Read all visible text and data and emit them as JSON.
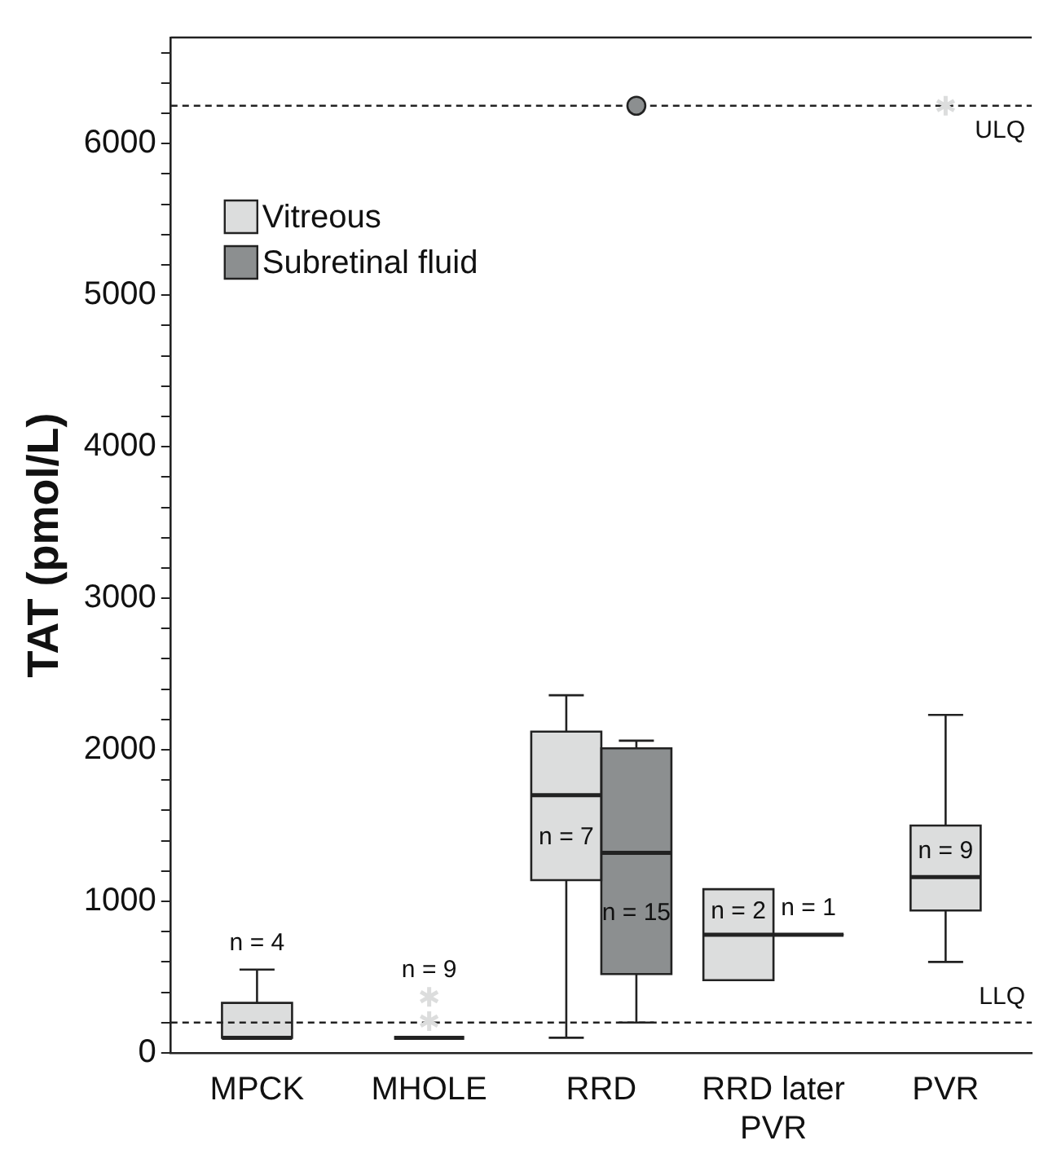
{
  "chart_data": {
    "type": "box",
    "ylabel": "TAT (pmol/L)",
    "categories": [
      "MPCK",
      "MHOLE",
      "RRD",
      "RRD later PVR",
      "PVR"
    ],
    "series": [
      {
        "name": "Vitreous",
        "color": "#dcdddd",
        "marker": "star",
        "value_labels": [
          "n = 4",
          "n = 9",
          "n = 7",
          "n = 2",
          "n = 9"
        ],
        "boxes": [
          {
            "low": 100,
            "q1": 100,
            "median": 100,
            "q3": 330,
            "high": 550
          },
          {
            "low": 100,
            "q1": 100,
            "median": 100,
            "q3": 100,
            "high": 100,
            "outliers": [
              370,
              210
            ]
          },
          {
            "low": 100,
            "q1": 1140,
            "median": 1700,
            "q3": 2120,
            "high": 2360
          },
          {
            "low": 480,
            "q1": 480,
            "median": 780,
            "q3": 1080,
            "high": 1080
          },
          {
            "low": 600,
            "q1": 940,
            "median": 1160,
            "q3": 1500,
            "high": 2230,
            "outliers": [
              6250
            ]
          }
        ]
      },
      {
        "name": "Subretinal fluid",
        "color": "#8c8f90",
        "marker": "circle",
        "value_labels": [
          null,
          null,
          "n = 15",
          "n = 1",
          null
        ],
        "boxes": [
          null,
          null,
          {
            "low": 200,
            "q1": 520,
            "median": 1320,
            "q3": 2010,
            "high": 2060,
            "outliers": [
              6250
            ]
          },
          {
            "low": 780,
            "q1": 780,
            "median": 780,
            "q3": 780,
            "high": 780
          },
          null
        ]
      }
    ],
    "ylim": [
      0,
      6700
    ],
    "yticks": [
      0,
      {
        "value": 200,
        "label": null
      },
      {
        "value": 400,
        "label": null
      },
      {
        "value": 600,
        "label": null
      },
      {
        "value": 800,
        "label": null
      },
      1000,
      {
        "value": 1200,
        "label": null
      },
      {
        "value": 1400,
        "label": null
      },
      {
        "value": 1600,
        "label": null
      },
      {
        "value": 1800,
        "label": null
      },
      2000,
      {
        "value": 2200,
        "label": null
      },
      {
        "value": 2400,
        "label": null
      },
      {
        "value": 2600,
        "label": null
      },
      {
        "value": 2800,
        "label": null
      },
      3000,
      {
        "value": 3200,
        "label": null
      },
      {
        "value": 3400,
        "label": null
      },
      {
        "value": 3600,
        "label": null
      },
      {
        "value": 3800,
        "label": null
      },
      4000,
      {
        "value": 4200,
        "label": null
      },
      {
        "value": 4400,
        "label": null
      },
      {
        "value": 4600,
        "label": null
      },
      {
        "value": 4800,
        "label": null
      },
      5000,
      {
        "value": 5200,
        "label": null
      },
      {
        "value": 5400,
        "label": null
      },
      {
        "value": 5600,
        "label": null
      },
      {
        "value": 5800,
        "label": null
      },
      6000,
      {
        "value": 6200,
        "label": null
      },
      {
        "value": 6400,
        "label": null
      },
      {
        "value": 6600,
        "label": null
      }
    ],
    "ref_lines": [
      {
        "axis": "y",
        "value": 6250,
        "label": "ULQ",
        "line_style": "dashed"
      },
      {
        "axis": "y",
        "value": 200,
        "label": "LLQ",
        "line_style": "dashed"
      }
    ],
    "legend": "top left",
    "grid": false
  }
}
